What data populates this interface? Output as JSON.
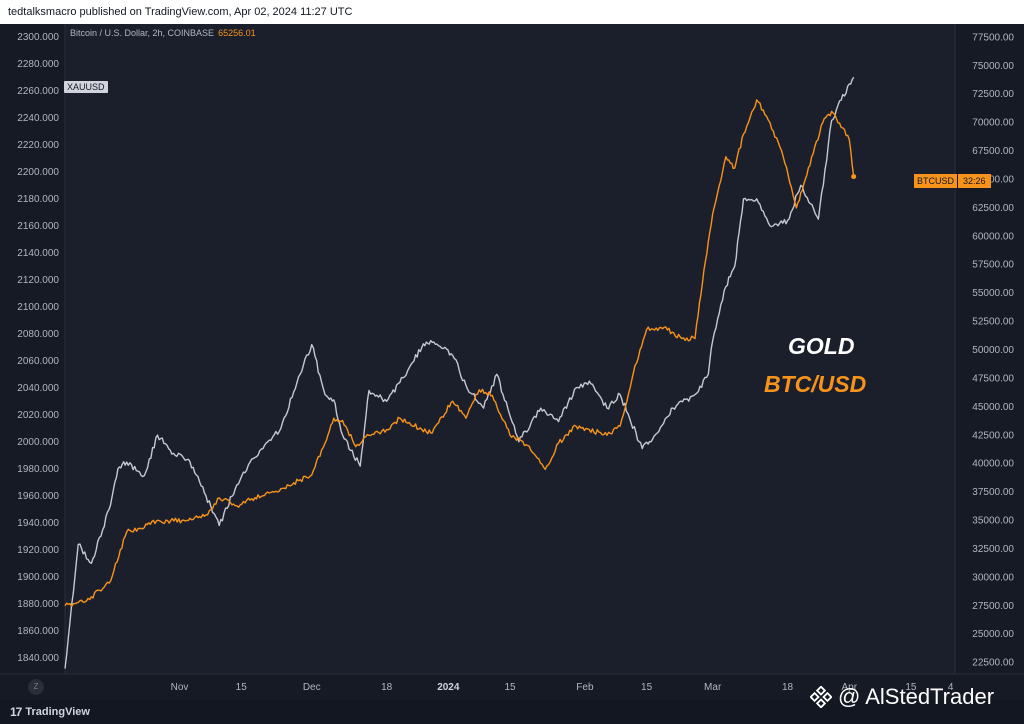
{
  "publisher_line": "tedtalksmacro published on TradingView.com, Apr 02, 2024 11:27 UTC",
  "legend": {
    "symbol": "Bitcoin / U.S. Dollar, 2h, COINBASE",
    "price": "65256.01"
  },
  "tags": {
    "xau": "XAUUSD",
    "btc_name": "BTCUSD",
    "btc_countdown": "32:26"
  },
  "annotations": {
    "gold": "GOLD",
    "btc": "BTC/USD"
  },
  "footer": {
    "logo_text": "TradingView",
    "zoom_label": "Z"
  },
  "watermark": {
    "text": "@ AlStedTrader"
  },
  "icons": {
    "logo": "tradingview-logo-icon",
    "watermark": "exchange-diamond-icon"
  },
  "colors": {
    "gold_line": "#c5c8d0",
    "btc_line": "#f7931a",
    "background": "#1b1f2b"
  },
  "chart_data": {
    "type": "line",
    "x_ticks": [
      "Nov",
      "15",
      "Dec",
      "18",
      "2024",
      "15",
      "Feb",
      "15",
      "Mar",
      "18",
      "Apr",
      "15",
      "4"
    ],
    "x_range": [
      "2023-10-06",
      "2024-04-25"
    ],
    "left_axis": {
      "ticks": [
        "2300.000",
        "2280.000",
        "2260.000",
        "2240.000",
        "2220.000",
        "2200.000",
        "2180.000",
        "2160.000",
        "2140.000",
        "2120.000",
        "2100.000",
        "2080.000",
        "2060.000",
        "2040.000",
        "2020.000",
        "2000.000",
        "1980.000",
        "1960.000",
        "1940.000",
        "1920.000",
        "1900.000",
        "1880.000",
        "1860.000",
        "1840.000"
      ],
      "range": [
        1828,
        2308
      ]
    },
    "right_axis": {
      "ticks": [
        "77500.00",
        "75000.00",
        "72500.00",
        "70000.00",
        "67500.00",
        "65000.00",
        "62500.00",
        "60000.00",
        "57500.00",
        "55000.00",
        "52500.00",
        "50000.00",
        "47500.00",
        "45000.00",
        "42500.00",
        "40000.00",
        "37500.00",
        "35000.00",
        "32500.00",
        "30000.00",
        "27500.00",
        "25000.00",
        "22500.00"
      ],
      "range": [
        21500,
        78500
      ]
    },
    "series": [
      {
        "name": "XAUUSD",
        "axis": "left",
        "x": [
          "2023-10-06",
          "2023-10-09",
          "2023-10-12",
          "2023-10-16",
          "2023-10-18",
          "2023-10-20",
          "2023-10-24",
          "2023-10-27",
          "2023-10-31",
          "2023-11-03",
          "2023-11-07",
          "2023-11-10",
          "2023-11-14",
          "2023-11-17",
          "2023-11-21",
          "2023-11-24",
          "2023-11-28",
          "2023-12-01",
          "2023-12-04",
          "2023-12-06",
          "2023-12-08",
          "2023-12-12",
          "2023-12-14",
          "2023-12-18",
          "2023-12-21",
          "2023-12-26",
          "2023-12-28",
          "2024-01-02",
          "2024-01-05",
          "2024-01-09",
          "2024-01-12",
          "2024-01-17",
          "2024-01-22",
          "2024-01-26",
          "2024-01-30",
          "2024-02-02",
          "2024-02-06",
          "2024-02-09",
          "2024-02-14",
          "2024-02-16",
          "2024-02-21",
          "2024-02-26",
          "2024-02-29",
          "2024-03-01",
          "2024-03-04",
          "2024-03-06",
          "2024-03-08",
          "2024-03-11",
          "2024-03-14",
          "2024-03-18",
          "2024-03-21",
          "2024-03-25",
          "2024-03-28",
          "2024-04-01",
          "2024-04-02"
        ],
        "values": [
          1832,
          1924,
          1910,
          1950,
          1980,
          1985,
          1975,
          2005,
          1990,
          1987,
          1960,
          1938,
          1968,
          1985,
          2000,
          2010,
          2048,
          2072,
          2035,
          2031,
          2005,
          1982,
          2038,
          2030,
          2044,
          2070,
          2075,
          2064,
          2042,
          2025,
          2050,
          2000,
          2025,
          2015,
          2040,
          2045,
          2025,
          2035,
          1995,
          2000,
          2025,
          2035,
          2050,
          2075,
          2115,
          2130,
          2180,
          2180,
          2160,
          2164,
          2190,
          2165,
          2238,
          2265,
          2270
        ]
      },
      {
        "name": "BTCUSD",
        "axis": "right",
        "x": [
          "2023-10-06",
          "2023-10-09",
          "2023-10-12",
          "2023-10-16",
          "2023-10-20",
          "2023-10-23",
          "2023-10-25",
          "2023-10-30",
          "2023-11-03",
          "2023-11-07",
          "2023-11-10",
          "2023-11-14",
          "2023-11-17",
          "2023-11-21",
          "2023-11-24",
          "2023-11-28",
          "2023-12-01",
          "2023-12-04",
          "2023-12-06",
          "2023-12-08",
          "2023-12-11",
          "2023-12-14",
          "2023-12-18",
          "2023-12-21",
          "2023-12-26",
          "2023-12-28",
          "2024-01-02",
          "2024-01-05",
          "2024-01-08",
          "2024-01-11",
          "2024-01-15",
          "2024-01-19",
          "2024-01-23",
          "2024-01-26",
          "2024-01-30",
          "2024-02-02",
          "2024-02-06",
          "2024-02-09",
          "2024-02-12",
          "2024-02-15",
          "2024-02-19",
          "2024-02-23",
          "2024-02-26",
          "2024-02-28",
          "2024-03-01",
          "2024-03-04",
          "2024-03-06",
          "2024-03-08",
          "2024-03-11",
          "2024-03-14",
          "2024-03-17",
          "2024-03-20",
          "2024-03-22",
          "2024-03-26",
          "2024-03-28",
          "2024-04-01",
          "2024-04-02"
        ],
        "values": [
          27500,
          27800,
          28300,
          29500,
          34000,
          34300,
          34800,
          35000,
          35000,
          35500,
          37000,
          36300,
          36800,
          37500,
          37800,
          38500,
          39000,
          41800,
          44000,
          43800,
          41500,
          42500,
          43000,
          44000,
          43000,
          42700,
          45500,
          44000,
          46500,
          46000,
          42500,
          41600,
          39500,
          41800,
          43300,
          43000,
          42500,
          43300,
          48000,
          51800,
          52000,
          51000,
          51000,
          57000,
          62000,
          67000,
          66000,
          69000,
          72000,
          70000,
          67000,
          62500,
          65000,
          70000,
          71000,
          68500,
          65256
        ]
      }
    ]
  }
}
